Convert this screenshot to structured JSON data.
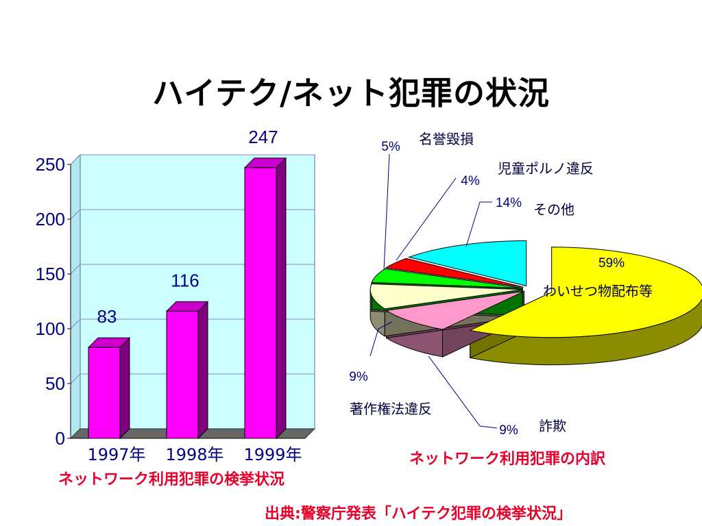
{
  "title": "ハイテク/ネット犯罪の状況",
  "source": "出典:警察庁発表「ハイテク犯罪の検挙状況」",
  "colors": {
    "bar": "#ff00ff",
    "plot_bg": "#ccffff",
    "caption": "#e8002a",
    "axis_text": "#000080"
  },
  "chart_data": [
    {
      "type": "bar",
      "title": "ネットワーク利用犯罪の検挙状況",
      "categories": [
        "1997年",
        "1998年",
        "1999年"
      ],
      "values": [
        83,
        116,
        247
      ],
      "value_labels": [
        "83",
        "116",
        "247"
      ],
      "ylim": [
        0,
        250
      ],
      "yticks": [
        "0",
        "50",
        "100",
        "150",
        "200",
        "250"
      ],
      "grid": true,
      "style": "3d"
    },
    {
      "type": "pie",
      "title": "ネットワーク利用犯罪の内訳",
      "style": "3d",
      "slices": [
        {
          "label": "わいせつ物配布等",
          "value": 59,
          "pct": "59%",
          "color": "#ffff00"
        },
        {
          "label": "詐欺",
          "value": 9,
          "pct": "9%",
          "color": "#ff99cc"
        },
        {
          "label": "著作権法違反",
          "value": 9,
          "pct": "9%",
          "color": "#ffffcc"
        },
        {
          "label": "名誉毀損",
          "value": 5,
          "pct": "5%",
          "color": "#00ff00"
        },
        {
          "label": "児童ポルノ違反",
          "value": 4,
          "pct": "4%",
          "color": "#ff0000"
        },
        {
          "label": "その他",
          "value": 14,
          "pct": "14%",
          "color": "#00ffff"
        }
      ]
    }
  ]
}
